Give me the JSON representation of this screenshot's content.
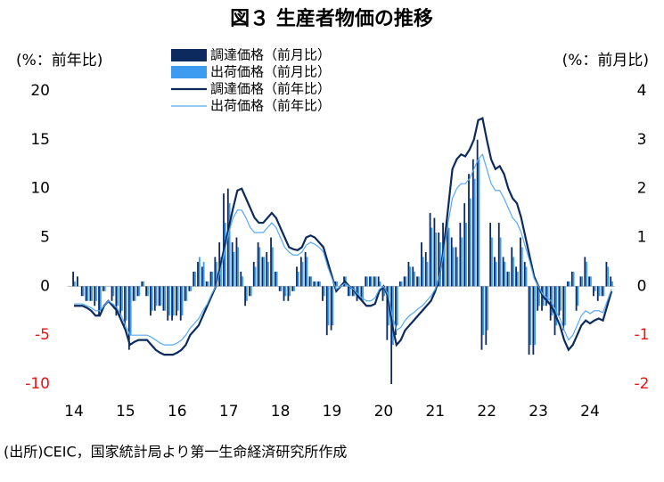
{
  "chart_data": {
    "type": "combo",
    "title": "図３ 生産者物価の推移",
    "y_label": "(%：前年比)",
    "y2_label": "(%：前月比)",
    "source": "(出所)CEIC，国家統計局より第一生命経済研究所作成",
    "categories": [
      "14",
      null,
      null,
      null,
      null,
      null,
      null,
      null,
      null,
      null,
      null,
      null,
      "15",
      null,
      null,
      null,
      null,
      null,
      null,
      null,
      null,
      null,
      null,
      null,
      "16",
      null,
      null,
      null,
      null,
      null,
      null,
      null,
      null,
      null,
      null,
      null,
      "17",
      null,
      null,
      null,
      null,
      null,
      null,
      null,
      null,
      null,
      null,
      null,
      "18",
      null,
      null,
      null,
      null,
      null,
      null,
      null,
      null,
      null,
      null,
      null,
      "19",
      null,
      null,
      null,
      null,
      null,
      null,
      null,
      null,
      null,
      null,
      null,
      "20",
      null,
      null,
      null,
      null,
      null,
      null,
      null,
      null,
      null,
      null,
      null,
      "21",
      null,
      null,
      null,
      null,
      null,
      null,
      null,
      null,
      null,
      null,
      null,
      "22",
      null,
      null,
      null,
      null,
      null,
      null,
      null,
      null,
      null,
      null,
      null,
      "23",
      null,
      null,
      null,
      null,
      null,
      null,
      null,
      null,
      null,
      null,
      null,
      "24",
      null,
      null,
      null,
      null,
      null
    ],
    "ylim": [
      -10,
      20
    ],
    "yticks": [
      -10,
      -5,
      0,
      5,
      10,
      15,
      20
    ],
    "y2lim": [
      -2,
      4
    ],
    "y2ticks": [
      -2,
      -1,
      0,
      1,
      2,
      3,
      4
    ],
    "negative_tick_color": "#ee1111",
    "title_color": "#1a6fd1",
    "series": [
      {
        "name": "調達価格（前月比）",
        "type": "bar",
        "axis": "y2",
        "color": "#0c2a5e",
        "values": [
          0.3,
          0.2,
          -0.2,
          -0.3,
          -0.3,
          -0.4,
          -0.6,
          -0.1,
          0,
          -0.3,
          -0.6,
          -0.6,
          -0.8,
          -1.3,
          -0.3,
          -0.2,
          0.1,
          -0.2,
          -0.6,
          -0.5,
          -0.4,
          -0.5,
          -0.7,
          -0.7,
          -0.6,
          -0.7,
          -0.3,
          -0.1,
          0.3,
          0.5,
          0.4,
          0.1,
          0.3,
          0.6,
          0.9,
          1.9,
          2,
          0.9,
          1,
          0.3,
          -0.4,
          -0.2,
          0.5,
          0.9,
          0.6,
          0.7,
          1,
          0.3,
          -0.1,
          -0.3,
          -0.3,
          -0.1,
          0.4,
          0.6,
          0.7,
          0.2,
          0.1,
          0.1,
          -0.3,
          -1,
          -0.9,
          0.1,
          0,
          0.2,
          -0.2,
          -0.2,
          -0.3,
          -0.3,
          0.2,
          0.2,
          0.2,
          0.2,
          -0.3,
          -1.1,
          -2,
          -1,
          0.1,
          0.2,
          0.5,
          0.4,
          0.2,
          0.9,
          0.7,
          1.5,
          1.4,
          1.1,
          1.3,
          1.3,
          1.0,
          0.8,
          1.3,
          1.7,
          2.3,
          2.6,
          3.0,
          -1.3,
          -1.2,
          1.3,
          0.6,
          1.3,
          0.6,
          0.3,
          0.8,
          0.4,
          1.0,
          0.5,
          -1.4,
          -1.4,
          -0.5,
          -0.5,
          -0.4,
          -0.7,
          -1.0,
          -0.6,
          -0.9,
          0.1,
          0.3,
          -0.5,
          0.2,
          0.6,
          0.2,
          -0.2,
          -0.3,
          -0.2,
          0.5,
          0.2
        ]
      },
      {
        "name": "出荷価格（前月比）",
        "type": "bar",
        "axis": "y2",
        "color": "#3d9cf0",
        "values": [
          0.1,
          0,
          -0.2,
          -0.3,
          -0.3,
          -0.3,
          -0.5,
          -0.1,
          0,
          -0.2,
          -0.4,
          -0.5,
          -0.7,
          -1.0,
          -0.3,
          -0.2,
          0.1,
          -0.2,
          -0.5,
          -0.4,
          -0.4,
          -0.5,
          -0.6,
          -0.6,
          -0.5,
          -0.6,
          -0.3,
          -0.1,
          0.3,
          0.6,
          0.5,
          0.1,
          0.3,
          0.5,
          0.6,
          1.3,
          1.7,
          0.7,
          0.8,
          0.2,
          -0.3,
          -0.2,
          0.4,
          0.8,
          0.6,
          0.5,
          0.8,
          0.3,
          -0.1,
          -0.2,
          -0.2,
          -0.1,
          0.3,
          0.5,
          0.6,
          0.2,
          0.1,
          0.1,
          -0.2,
          -0.8,
          -0.8,
          0.1,
          0,
          0.2,
          -0.2,
          -0.2,
          -0.2,
          -0.3,
          0.2,
          0.2,
          0.2,
          0.1,
          -0.2,
          -0.8,
          -1.2,
          -0.8,
          0.1,
          0.2,
          0.4,
          0.3,
          0.2,
          0.6,
          0.5,
          1.2,
          1.1,
          0.9,
          1.0,
          1.2,
          0.8,
          0.6,
          1.0,
          1.3,
          1.8,
          2.2,
          2.6,
          -1.0,
          -0.9,
          1.0,
          0.5,
          1.0,
          0.5,
          0.3,
          0.6,
          0.3,
          0.8,
          0.4,
          -1.2,
          -1.2,
          -0.4,
          -0.4,
          -0.3,
          -0.6,
          -0.8,
          -0.5,
          -0.8,
          0.1,
          0.3,
          -0.4,
          0.2,
          0.5,
          0.2,
          -0.1,
          -0.2,
          -0.2,
          0.4,
          0.1
        ]
      },
      {
        "name": "調達価格（前年比）",
        "type": "line",
        "color": "#0c2a5e",
        "values": [
          -2,
          -2,
          -2,
          -2.2,
          -2.5,
          -3,
          -3,
          -2,
          -1.5,
          -2,
          -2.5,
          -3.5,
          -4.5,
          -6,
          -5.7,
          -5.5,
          -5.5,
          -5.5,
          -6,
          -6.5,
          -6.8,
          -7,
          -7,
          -7,
          -6.8,
          -6.5,
          -6,
          -5,
          -4.5,
          -4,
          -3,
          -2,
          -1,
          0,
          2,
          4,
          6,
          8,
          9.8,
          10,
          9,
          8,
          7,
          6.5,
          6.5,
          7,
          7.5,
          7,
          6,
          5,
          4,
          3.8,
          3.7,
          4,
          5,
          5.2,
          5,
          4.5,
          4,
          2.5,
          1,
          -0.5,
          0,
          0.5,
          0,
          -0.3,
          -1,
          -1.5,
          -2,
          -2,
          -1.8,
          -0.5,
          0,
          -1,
          -4,
          -6,
          -5.5,
          -4.5,
          -4,
          -3.5,
          -3,
          -2.5,
          -2,
          -1.5,
          -0.5,
          1,
          4,
          8,
          12,
          13,
          13.5,
          13.3,
          14,
          15,
          17,
          17.2,
          15,
          13,
          12,
          12.3,
          11.5,
          10,
          9,
          8.5,
          7,
          5,
          3,
          1,
          0,
          -1,
          -1.5,
          -2,
          -3,
          -4,
          -5.5,
          -6.5,
          -6,
          -5,
          -4,
          -3.5,
          -3.8,
          -3.5,
          -3.3,
          -3.5,
          -2,
          -0.5
        ]
      },
      {
        "name": "出荷価格（前年比）",
        "type": "line",
        "color": "#55aaf0",
        "values": [
          -1.8,
          -1.8,
          -1.8,
          -2,
          -2.2,
          -2.5,
          -2.5,
          -2,
          -1.5,
          -1.8,
          -2.2,
          -3,
          -4,
          -5,
          -5,
          -5,
          -5,
          -5,
          -5.2,
          -5.5,
          -5.8,
          -6,
          -6,
          -6,
          -5.8,
          -5.5,
          -5,
          -4.3,
          -3.8,
          -3.3,
          -2.5,
          -1.8,
          -0.8,
          0,
          1.5,
          3.5,
          5.5,
          7,
          7.8,
          7.8,
          7,
          6,
          5.5,
          5.5,
          5.5,
          6,
          6.5,
          6,
          5,
          4,
          3.5,
          3.2,
          3.2,
          3.5,
          4.2,
          4.5,
          4.3,
          4,
          3.5,
          2,
          0.8,
          -0.3,
          0,
          0.3,
          0,
          -0.3,
          -0.8,
          -1.2,
          -1.5,
          -1.5,
          -1.2,
          -0.3,
          0,
          -0.8,
          -3,
          -4.5,
          -4.2,
          -3.5,
          -3,
          -2.7,
          -2.3,
          -2,
          -1.5,
          -1,
          -0.3,
          1,
          3.5,
          6.5,
          9,
          10,
          10.5,
          10.5,
          11,
          12,
          13,
          13.5,
          12,
          10.5,
          9.8,
          9.8,
          9,
          8,
          7,
          6.5,
          5.5,
          4,
          2.5,
          0.8,
          0,
          -0.8,
          -1.2,
          -1.5,
          -2.5,
          -3.3,
          -4.5,
          -5.5,
          -5,
          -4,
          -3,
          -2.5,
          -2.8,
          -2.5,
          -2.5,
          -2.7,
          -1.5,
          -0.3
        ]
      }
    ]
  }
}
